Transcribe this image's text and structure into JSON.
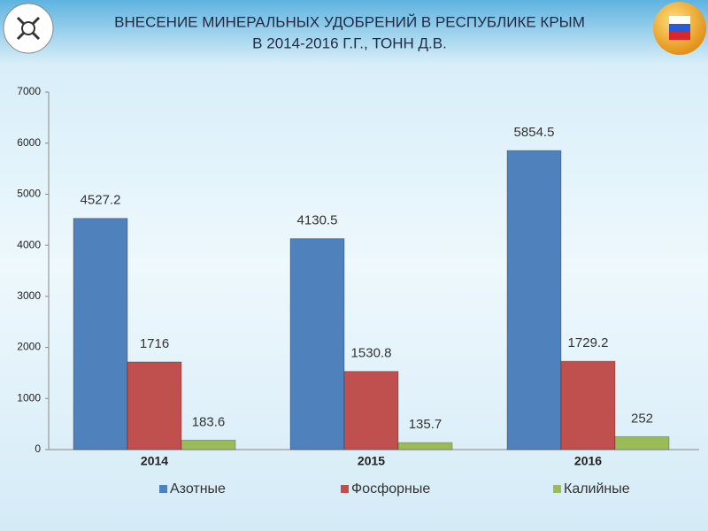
{
  "chart_data": {
    "type": "bar",
    "title": [
      "ВНЕСЕНИЕ МИНЕРАЛЬНЫХ УДОБРЕНИЙ В РЕСПУБЛИКЕ КРЫМ",
      "В 2014-2016 Г.Г., ТОНН Д.В."
    ],
    "categories": [
      "2014",
      "2015",
      "2016"
    ],
    "series": [
      {
        "name": "Азотные",
        "color": "#4f81bd",
        "values": [
          4527.2,
          4130.5,
          5854.5
        ]
      },
      {
        "name": "Фосфорные",
        "color": "#c0504d",
        "values": [
          1716,
          1530.8,
          1729.2
        ]
      },
      {
        "name": "Калийные",
        "color": "#9bbb59",
        "values": [
          183.6,
          135.7,
          252
        ]
      }
    ],
    "ylim": [
      0,
      7000
    ],
    "yticks": [
      0,
      1000,
      2000,
      3000,
      4000,
      5000,
      6000,
      7000
    ],
    "grid": false,
    "legend": "bottom"
  }
}
